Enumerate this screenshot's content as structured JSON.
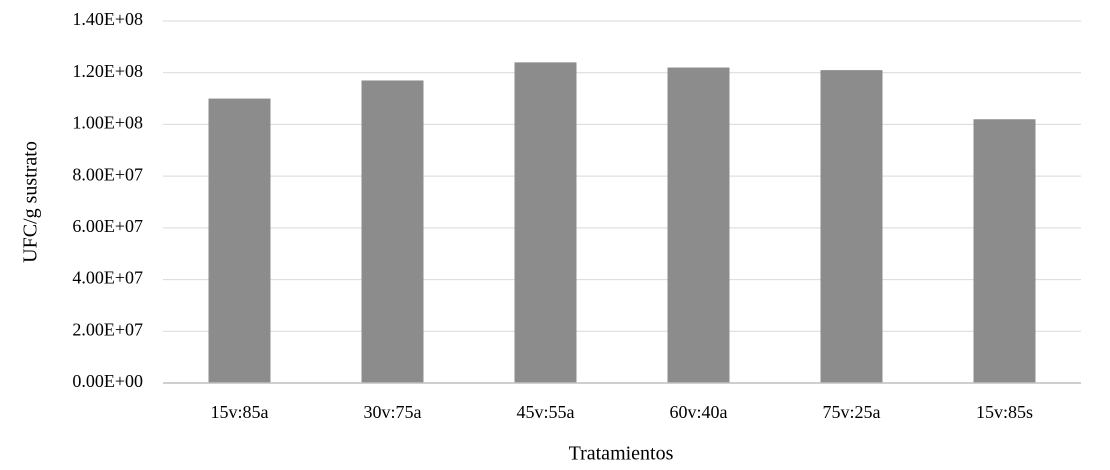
{
  "chart_data": {
    "type": "bar",
    "x_label": "Tratamientos",
    "y_label": "UFC/g sustrato",
    "categories": [
      "15v:85a",
      "30v:75a",
      "45v:55a",
      "60v:40a",
      "75v:25a",
      "15v:85s"
    ],
    "values": [
      110000000,
      117000000,
      124000000,
      122000000,
      121000000,
      102000000
    ],
    "color": "#8c8c8c",
    "ylim": [
      0,
      140000000
    ],
    "yticks": [
      {
        "value": 0,
        "label": "0.00E+00"
      },
      {
        "value": 20000000,
        "label": "2.00E+07"
      },
      {
        "value": 40000000,
        "label": "4.00E+07"
      },
      {
        "value": 60000000,
        "label": "6.00E+07"
      },
      {
        "value": 80000000,
        "label": "8.00E+07"
      },
      {
        "value": 100000000,
        "label": "1.00E+08"
      },
      {
        "value": 120000000,
        "label": "1.20E+08"
      },
      {
        "value": 140000000,
        "label": "1.40E+08"
      }
    ],
    "grid": true
  }
}
